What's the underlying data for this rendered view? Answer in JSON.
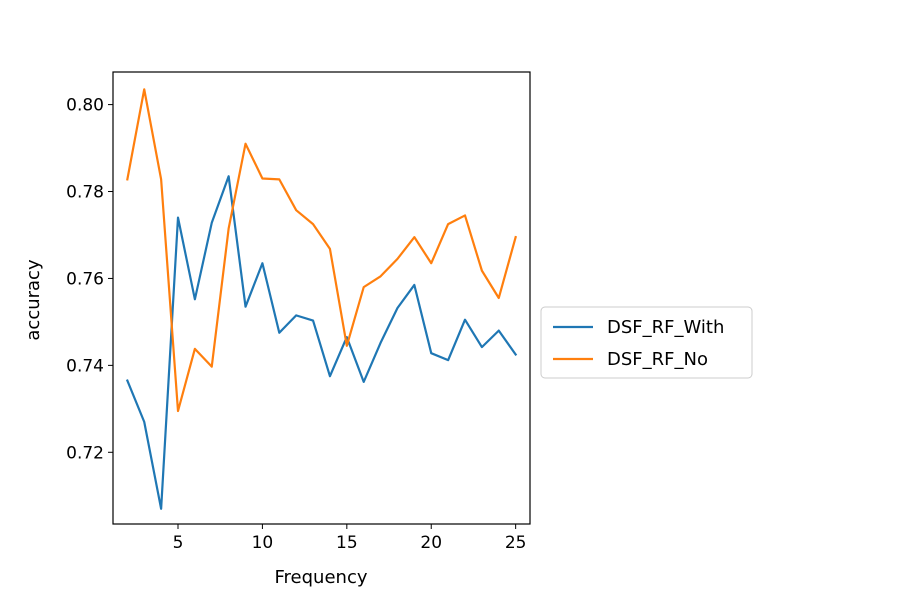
{
  "chart_data": {
    "type": "line",
    "xlabel": "Frequency",
    "ylabel": "accuracy",
    "xlim": [
      1.15,
      25.85
    ],
    "ylim": [
      0.7035,
      0.8075
    ],
    "xticks": [
      5,
      10,
      15,
      20,
      25
    ],
    "yticks": [
      0.72,
      0.74,
      0.76,
      0.78,
      0.8
    ],
    "ytick_labels": [
      "0.72",
      "0.74",
      "0.76",
      "0.78",
      "0.80"
    ],
    "grid": false,
    "legend_position": "right-outside",
    "x": [
      2,
      3,
      4,
      5,
      6,
      7,
      8,
      9,
      10,
      11,
      12,
      13,
      14,
      15,
      16,
      17,
      18,
      19,
      20,
      21,
      22,
      23,
      24,
      25
    ],
    "series": [
      {
        "name": "DSF_RF_With",
        "color": "#1f77b4",
        "values": [
          0.7365,
          0.727,
          0.707,
          0.774,
          0.7552,
          0.7728,
          0.7835,
          0.7535,
          0.7635,
          0.7475,
          0.7515,
          0.7503,
          0.7375,
          0.7465,
          0.7362,
          0.7452,
          0.7532,
          0.7585,
          0.7428,
          0.7412,
          0.7505,
          0.7442,
          0.748,
          0.7425
        ]
      },
      {
        "name": "DSF_RF_No",
        "color": "#ff7f0e",
        "values": [
          0.7828,
          0.8035,
          0.7828,
          0.7295,
          0.7438,
          0.7397,
          0.7715,
          0.791,
          0.783,
          0.7828,
          0.7757,
          0.7725,
          0.7668,
          0.7445,
          0.758,
          0.7605,
          0.7645,
          0.7695,
          0.7635,
          0.7725,
          0.7745,
          0.7618,
          0.7555,
          0.7695
        ]
      }
    ]
  }
}
